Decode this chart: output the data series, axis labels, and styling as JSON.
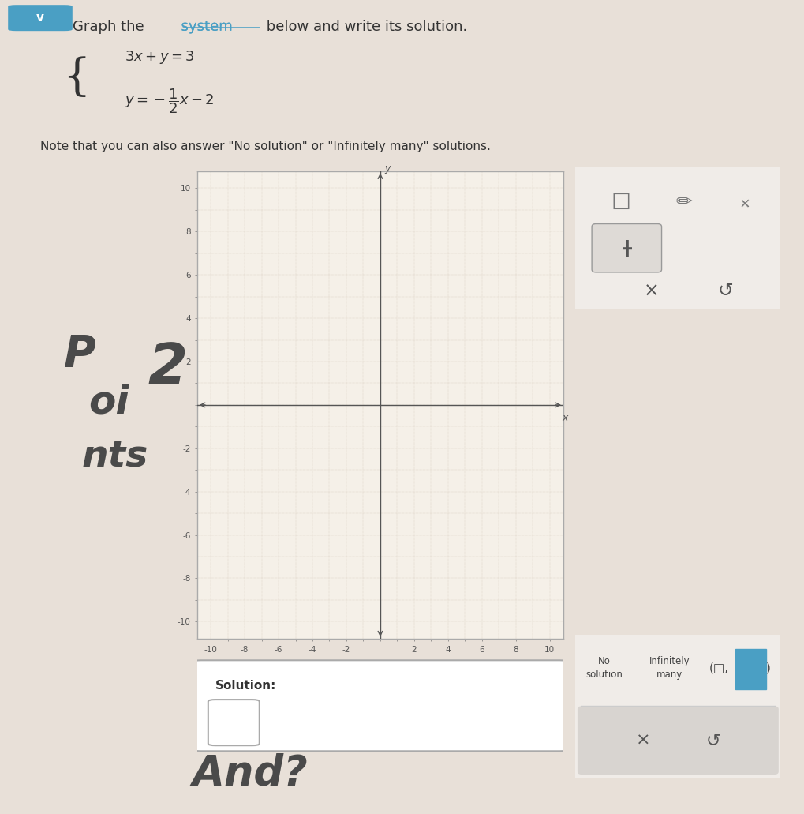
{
  "bg_color": "#e8e0d8",
  "graph_bg": "#f5f0e8",
  "grid_color": "#c8b8a8",
  "axis_color": "#555555",
  "xlim": [
    -10,
    10
  ],
  "ylim": [
    -10,
    10
  ],
  "xticks": [
    -10,
    -8,
    -6,
    -4,
    -2,
    0,
    2,
    4,
    6,
    8,
    10
  ],
  "yticks": [
    -10,
    -8,
    -6,
    -4,
    -2,
    0,
    2,
    4,
    6,
    8,
    10
  ],
  "teal_color": "#4a9fc4",
  "solution_label": "Solution:",
  "no_solution_text": "No\nsolution",
  "infinitely_many_text": "Infinitely\nmany",
  "graph_border_color": "#aaaaaa",
  "panel_bg": "#f0ece8",
  "panel_border": "#cccccc",
  "gray_btn_bg": "#d8d4d0",
  "white": "#ffffff",
  "dark_text": "#333333",
  "mid_text": "#444444",
  "light_text": "#888888"
}
